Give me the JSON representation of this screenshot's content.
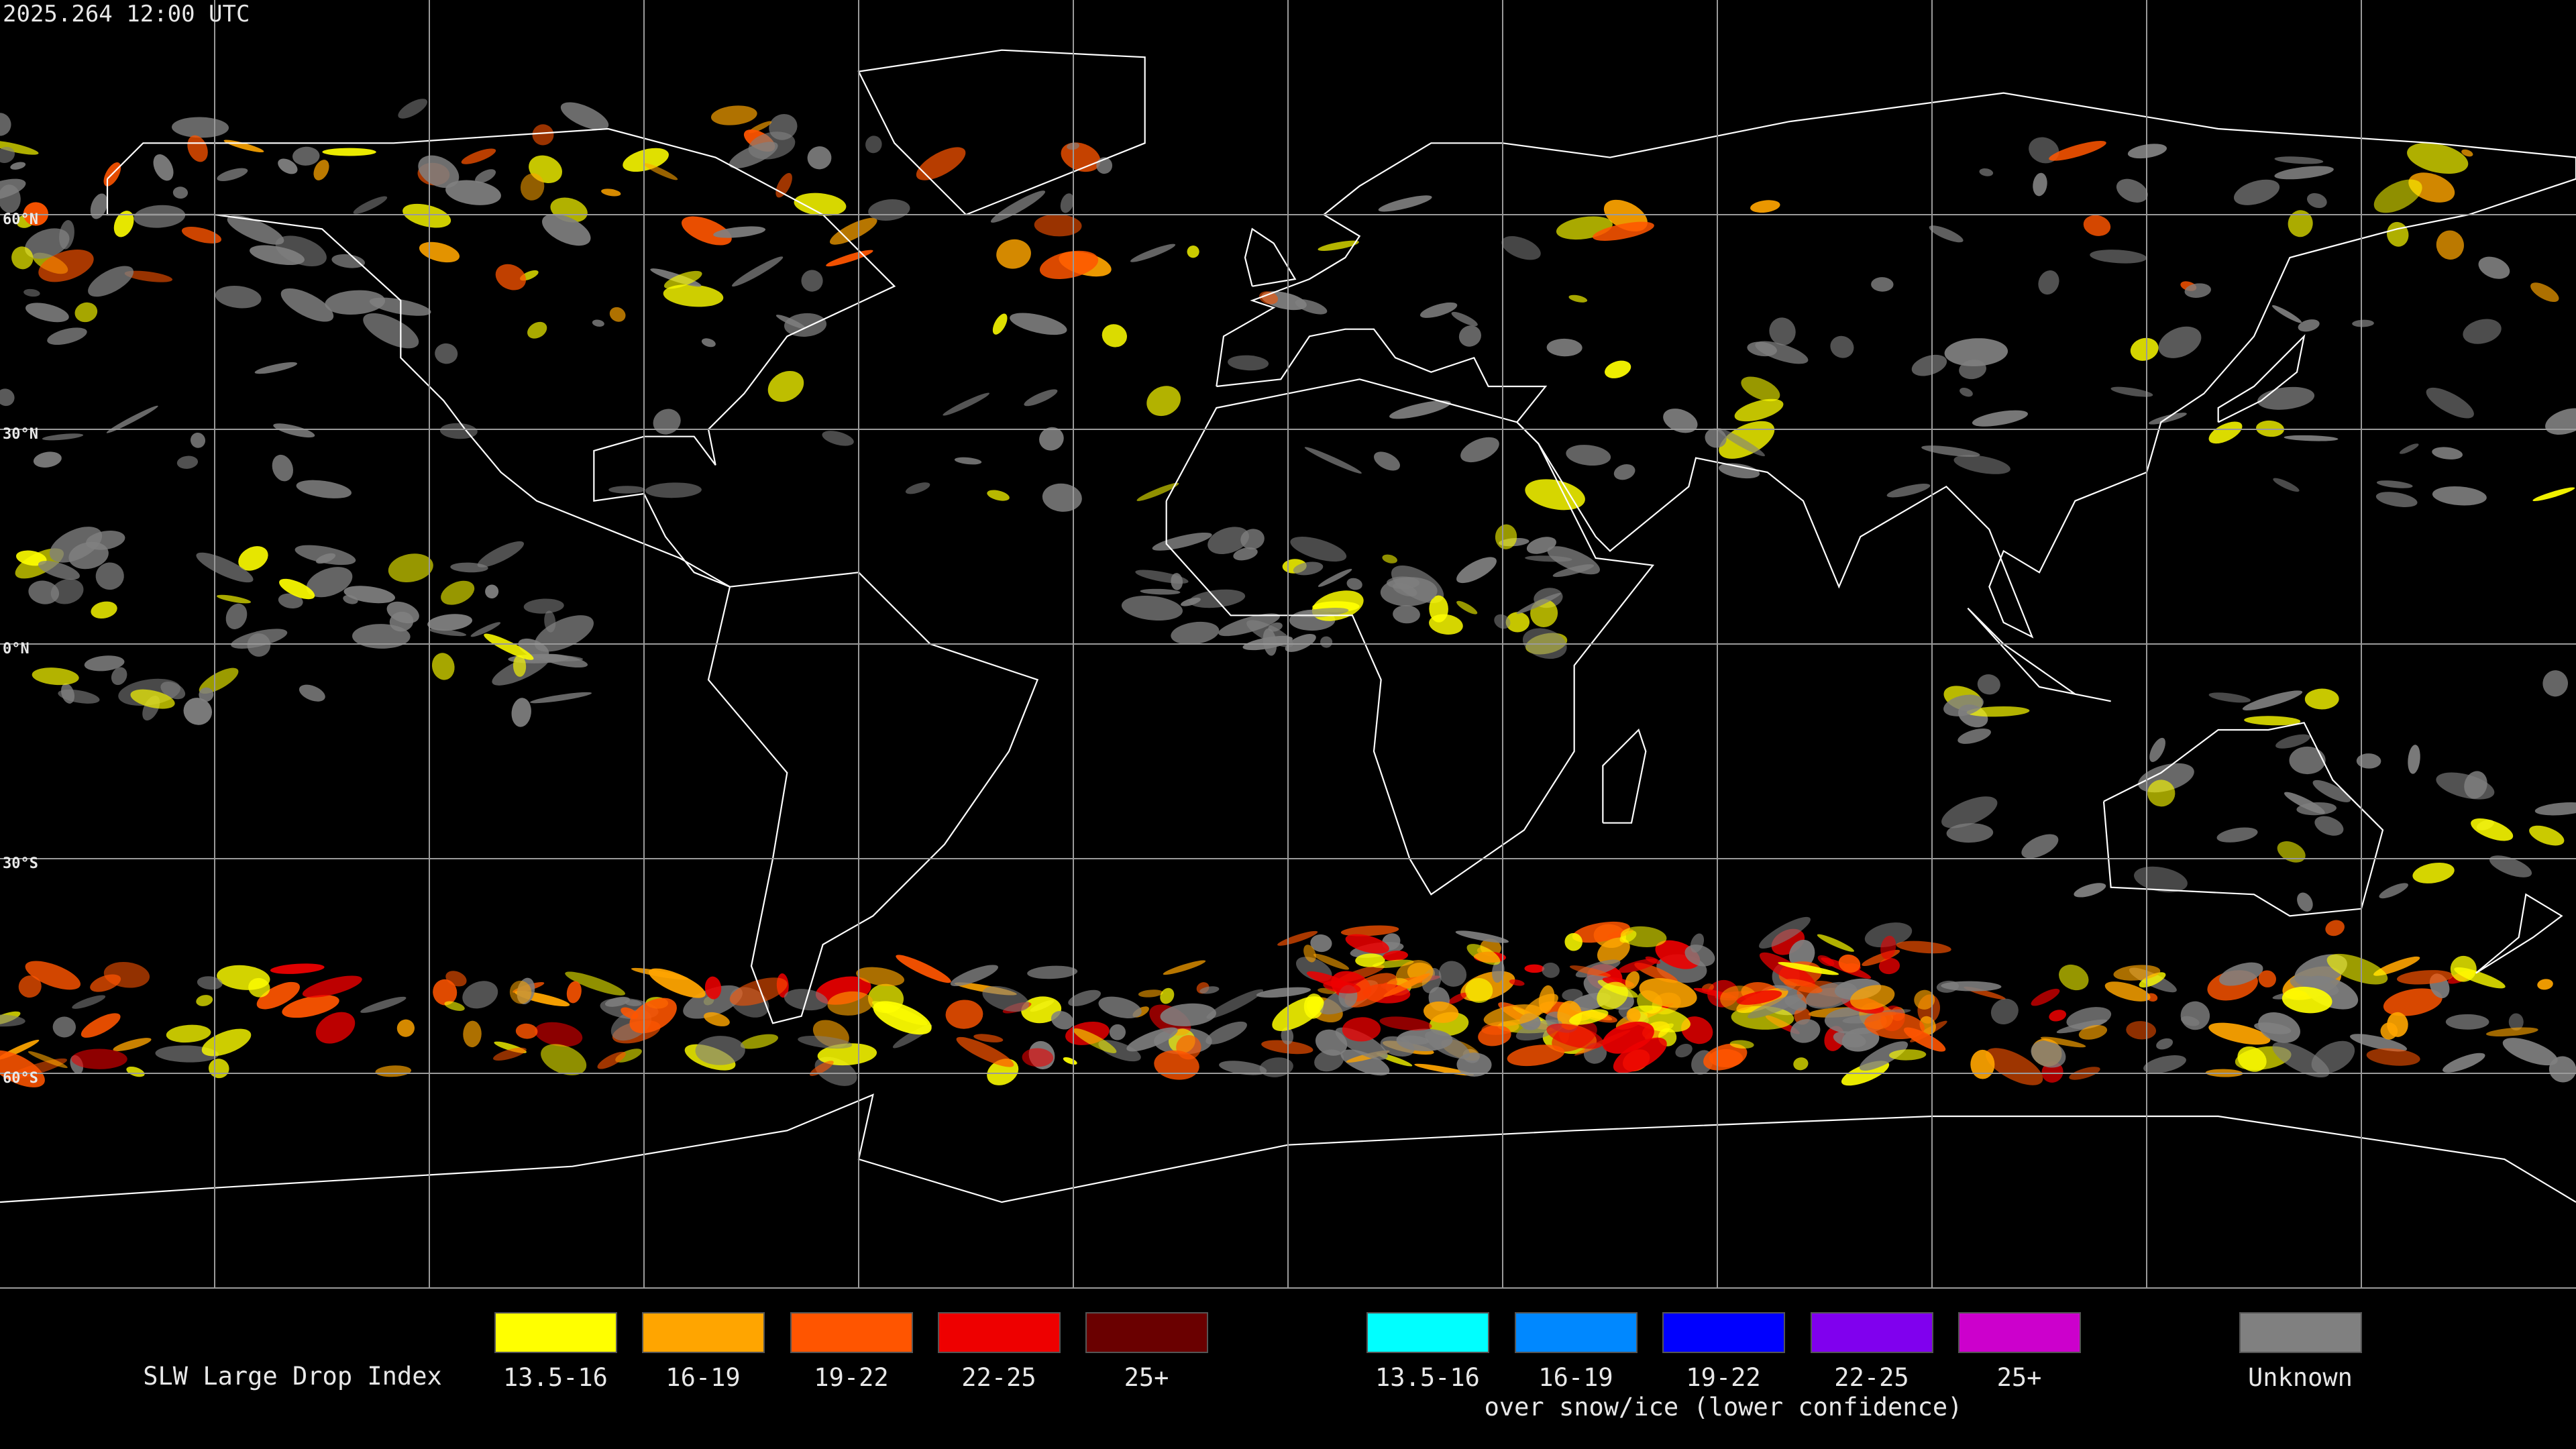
{
  "header": {
    "timestamp": "2025.264 12:00 UTC"
  },
  "map": {
    "latitude_labels": [
      "60°N",
      "30°N",
      "0°N",
      "30°S",
      "60°S"
    ]
  },
  "legend": {
    "title": "SLW Large Drop Index",
    "groups": [
      {
        "items": [
          {
            "label": "13.5-16",
            "color": "#ffff00"
          },
          {
            "label": "16-19",
            "color": "#ffa500"
          },
          {
            "label": "19-22",
            "color": "#ff5500"
          },
          {
            "label": "22-25",
            "color": "#ee0000"
          },
          {
            "label": "25+",
            "color": "#6a0000"
          }
        ]
      },
      {
        "items": [
          {
            "label": "13.5-16",
            "color": "#00ffff"
          },
          {
            "label": "16-19",
            "color": "#0088ff"
          },
          {
            "label": "19-22",
            "color": "#0000ff"
          },
          {
            "label": "22-25",
            "color": "#8000ee"
          },
          {
            "label": "25+",
            "color": "#cc00cc"
          }
        ],
        "caption": "over snow/ice (lower confidence)"
      },
      {
        "items": [
          {
            "label": "Unknown",
            "color": "#808080"
          }
        ]
      }
    ]
  }
}
